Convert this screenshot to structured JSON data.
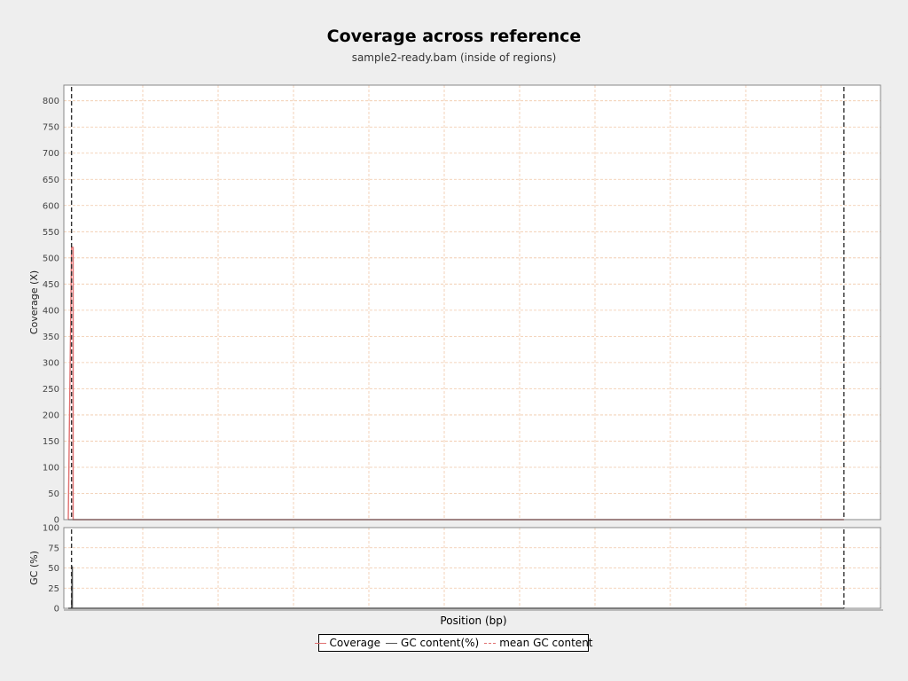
{
  "chart_data": {
    "type": "line",
    "title": "Coverage across reference",
    "subtitle": "sample2-ready.bam (inside of regions)",
    "xlabel": "Position (bp)",
    "xlim": [
      0,
      1000
    ],
    "grid": true,
    "legend_placement": "bottom-center",
    "panels": [
      {
        "id": "coverage",
        "ylabel": "Coverage (X)",
        "ylim": [
          0,
          830
        ],
        "yticks": [
          0,
          50,
          100,
          150,
          200,
          250,
          300,
          350,
          400,
          450,
          500,
          550,
          600,
          650,
          700,
          750,
          800
        ],
        "series": [
          {
            "name": "Coverage",
            "color": "#e07070",
            "x": [
              0,
              4,
              6,
              6,
              955
            ],
            "y": [
              0,
              520,
              520,
              0,
              0
            ]
          }
        ]
      },
      {
        "id": "gc",
        "ylabel": "GC (%)",
        "ylim": [
          0,
          100
        ],
        "yticks": [
          0,
          25,
          50,
          75,
          100
        ],
        "series": [
          {
            "name": "GC content(%)",
            "color": "#555555",
            "x": [
              0,
              4,
              5,
              5,
              955
            ],
            "y": [
              0,
              0,
              52,
              0,
              0
            ]
          }
        ]
      }
    ],
    "vlines": [
      {
        "x": 4,
        "color": "#333333",
        "dash": true
      },
      {
        "x": 955,
        "color": "#333333",
        "dash": true
      }
    ],
    "legend": [
      {
        "name": "Coverage",
        "color": "#e07070",
        "style": "solid"
      },
      {
        "name": "GC content(%)",
        "color": "#555555",
        "style": "solid"
      },
      {
        "name": "mean GC content",
        "color": "#e07070",
        "style": "dashed"
      }
    ]
  }
}
